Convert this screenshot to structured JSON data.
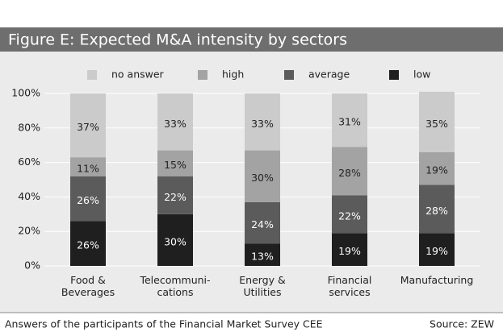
{
  "chart_data": {
    "type": "stacked_bar",
    "title": "Figure E: Expected M&A intensity by sectors",
    "footnote": "Answers of the participants of the Financial Market Survey CEE",
    "source": "Source: ZEW",
    "categories": [
      "Food &\nBeverages",
      "Telecommuni-\ncations",
      "Energy &\nUtilities",
      "Financial\nservices",
      "Manufacturing"
    ],
    "series": [
      {
        "name": "low",
        "color": "#1f1f1f",
        "values": [
          26,
          30,
          13,
          19,
          19
        ],
        "value_labels": [
          "26%",
          "30%",
          "13%",
          "19%",
          "19%"
        ]
      },
      {
        "name": "average",
        "color": "#5b5b5b",
        "values": [
          26,
          22,
          24,
          22,
          28
        ],
        "value_labels": [
          "26%",
          "22%",
          "24%",
          "22%",
          "28%"
        ]
      },
      {
        "name": "high",
        "color": "#a3a3a3",
        "values": [
          11,
          15,
          30,
          28,
          19
        ],
        "value_labels": [
          "11%",
          "15%",
          "30%",
          "28%",
          "19%"
        ]
      },
      {
        "name": "no answer",
        "color": "#cbcbcb",
        "values": [
          37,
          33,
          33,
          31,
          35
        ],
        "value_labels": [
          "37%",
          "33%",
          "33%",
          "31%",
          "35%"
        ]
      }
    ],
    "legend": "top",
    "grid": true,
    "ylim": [
      0,
      100
    ],
    "yticks": [
      {
        "value": 0,
        "label": "0%"
      },
      {
        "value": 20,
        "label": "20%"
      },
      {
        "value": 40,
        "label": "40%"
      },
      {
        "value": 60,
        "label": "60%"
      },
      {
        "value": 80,
        "label": "80%"
      },
      {
        "value": 100,
        "label": "100%"
      }
    ]
  }
}
